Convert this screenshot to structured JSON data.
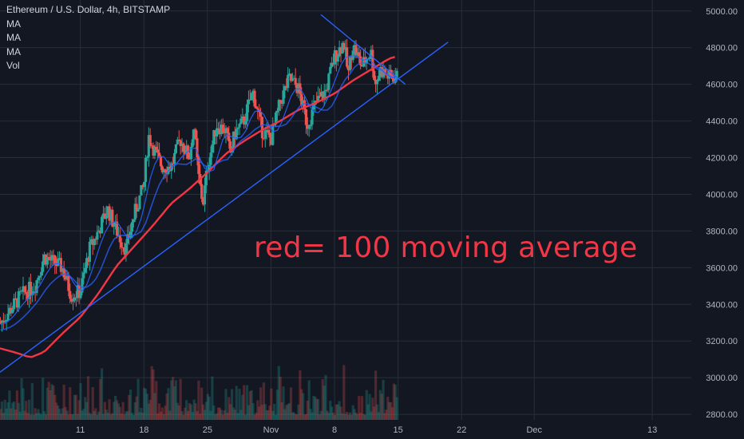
{
  "legend": {
    "title": "Ethereum / U.S. Dollar, 4h, BITSTAMP",
    "items": [
      "MA",
      "MA",
      "MA",
      "Vol"
    ]
  },
  "annotation": "red= 100 moving average",
  "colors": {
    "background": "#131722",
    "grid": "#2a2e39",
    "up": "#26a69a",
    "down": "#ef5350",
    "ma_fast": "#2962ff",
    "ma_mid": "#2962ff",
    "ma_slow": "#f23645",
    "trendline": "#2962ff",
    "annotation": "#f23645"
  },
  "chart_data": {
    "type": "candlestick",
    "title": "Ethereum / U.S. Dollar, 4h, BITSTAMP",
    "y_ticks": [
      2800,
      3000,
      3200,
      3400,
      3600,
      3800,
      4000,
      4200,
      4400,
      4600,
      4800,
      5000
    ],
    "y_tick_labels": [
      "2800.00",
      "3000.00",
      "3200.00",
      "3400.00",
      "3600.00",
      "3800.00",
      "4000.00",
      "4200.00",
      "4400.00",
      "4600.00",
      "4800.00",
      "5000.00"
    ],
    "ylim": [
      2770,
      5060
    ],
    "x_ticks": [
      {
        "label": "11",
        "day": 11
      },
      {
        "label": "18",
        "day": 18
      },
      {
        "label": "25",
        "day": 25
      },
      {
        "label": "Nov",
        "day": 32
      },
      {
        "label": "8",
        "day": 39
      },
      {
        "label": "15",
        "day": 46
      },
      {
        "label": "22",
        "day": 53
      },
      {
        "label": "Dec",
        "day": 61
      },
      {
        "label": "13",
        "day": 74
      }
    ],
    "xlim": [
      2.15,
      78.3
    ],
    "grid": true,
    "price_anchors": [
      [
        2.2,
        3300
      ],
      [
        4.5,
        3450
      ],
      [
        6,
        3500
      ],
      [
        7,
        3660
      ],
      [
        9,
        3600
      ],
      [
        10,
        3450
      ],
      [
        11,
        3470
      ],
      [
        12,
        3700
      ],
      [
        13,
        3800
      ],
      [
        14,
        3920
      ],
      [
        15,
        3800
      ],
      [
        16,
        3700
      ],
      [
        17,
        3900
      ],
      [
        18,
        4050
      ],
      [
        18.5,
        4320
      ],
      [
        19.5,
        4200
      ],
      [
        20,
        4150
      ],
      [
        21,
        4150
      ],
      [
        22,
        4300
      ],
      [
        23,
        4200
      ],
      [
        23.5,
        4380
      ],
      [
        24,
        4100
      ],
      [
        24.5,
        3950
      ],
      [
        25,
        4150
      ],
      [
        26,
        4380
      ],
      [
        27,
        4350
      ],
      [
        27.5,
        4220
      ],
      [
        28,
        4330
      ],
      [
        29,
        4400
      ],
      [
        30,
        4560
      ],
      [
        31,
        4350
      ],
      [
        32,
        4300
      ],
      [
        33,
        4500
      ],
      [
        34,
        4630
      ],
      [
        35,
        4580
      ],
      [
        36,
        4380
      ],
      [
        37,
        4500
      ],
      [
        38,
        4560
      ],
      [
        39,
        4750
      ],
      [
        40,
        4830
      ],
      [
        40.5,
        4650
      ],
      [
        41,
        4820
      ],
      [
        42,
        4700
      ],
      [
        43,
        4780
      ],
      [
        43.5,
        4600
      ],
      [
        44,
        4680
      ],
      [
        45,
        4640
      ],
      [
        46,
        4640
      ]
    ],
    "ma_slow_anchors": [
      [
        2.15,
        3160
      ],
      [
        4,
        3135
      ],
      [
        5.5,
        3110
      ],
      [
        7,
        3140
      ],
      [
        9,
        3240
      ],
      [
        11,
        3330
      ],
      [
        13,
        3460
      ],
      [
        15,
        3610
      ],
      [
        17,
        3720
      ],
      [
        19,
        3830
      ],
      [
        21,
        3950
      ],
      [
        23,
        4030
      ],
      [
        25,
        4120
      ],
      [
        27,
        4220
      ],
      [
        29,
        4290
      ],
      [
        31,
        4350
      ],
      [
        33,
        4400
      ],
      [
        35,
        4460
      ],
      [
        37,
        4500
      ],
      [
        39,
        4550
      ],
      [
        41,
        4620
      ],
      [
        43,
        4680
      ],
      [
        45,
        4740
      ],
      [
        46,
        4755
      ]
    ],
    "trendline": {
      "x0": 2.15,
      "y0": 3030,
      "x1": 51.5,
      "y1": 4830
    },
    "triangle_line": {
      "x0": 37.5,
      "y0": 4980,
      "x1": 46.8,
      "y1": 4600
    },
    "volume_note": "small volume bars along bottom"
  }
}
